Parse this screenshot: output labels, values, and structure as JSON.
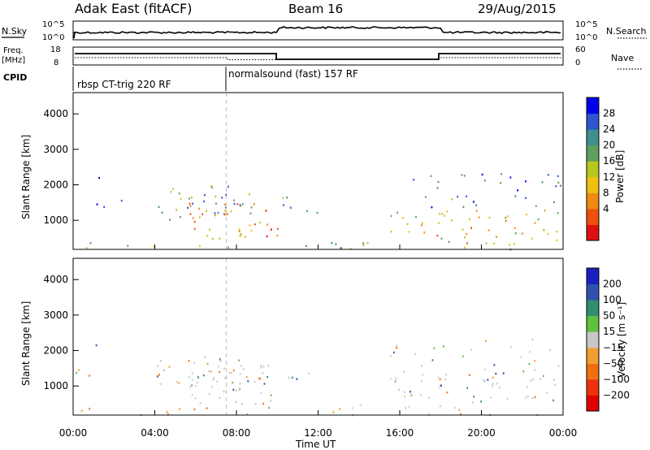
{
  "header": {
    "station": "Adak East (fitACF)",
    "beam": "Beam 16",
    "date": "29/Aug/2015"
  },
  "top_panels": {
    "nsky_label": "N.Sky",
    "nsearch_label": "N.Search",
    "freq_label": "Freq.",
    "freq_unit": "[MHz]",
    "nave_label": "Nave",
    "cpid_label": "CPID",
    "left_ticks_n": [
      "10^5",
      "10^0"
    ],
    "right_ticks_n": [
      "10^5",
      "10^0"
    ],
    "left_ticks_f": [
      "18",
      "8"
    ],
    "right_ticks_f": [
      "60",
      "0"
    ],
    "cpid_segments": [
      {
        "label": "rbsp CT-trig 220 RF",
        "start_h": 0,
        "end_h": 7.5
      },
      {
        "label": "normalsound (fast) 157 RF",
        "start_h": 7.5,
        "end_h": 24
      }
    ]
  },
  "chart_data": [
    {
      "type": "heatmap",
      "name": "power",
      "ylabel": "Slant Range [km]",
      "y_ticks": [
        "4000",
        "3000",
        "2000",
        "1000"
      ],
      "ylim": [
        180,
        4600
      ],
      "xlim": [
        0,
        24
      ],
      "colorbar_label": "Power [dB]",
      "colorbar_ticks": [
        "28",
        "24",
        "20",
        "16",
        "12",
        "8",
        "4"
      ],
      "colors": [
        "#0000ee",
        "#2f55d0",
        "#3f8f8f",
        "#5fa060",
        "#b8c820",
        "#f0c010",
        "#f08a10",
        "#ee5010",
        "#e01010"
      ]
    },
    {
      "type": "heatmap",
      "name": "velocity",
      "ylabel": "Slant Range [km]",
      "y_ticks": [
        "4000",
        "3000",
        "2000",
        "1000"
      ],
      "ylim": [
        180,
        4600
      ],
      "xlim": [
        0,
        24
      ],
      "colorbar_label": "Velocity [m s⁻¹]",
      "colorbar_ticks": [
        "200",
        "100",
        "50",
        "15",
        "−15",
        "−50",
        "−100",
        "−200"
      ],
      "colors": [
        "#1a20c0",
        "#3050b0",
        "#2f8f6f",
        "#60c040",
        "#c8c8c8",
        "#f0a030",
        "#f07010",
        "#ee3010",
        "#e00000"
      ]
    }
  ],
  "x_axis": {
    "ticks": [
      "00:00",
      "04:00",
      "08:00",
      "12:00",
      "16:00",
      "20:00",
      "00:00"
    ],
    "label": "Time UT"
  }
}
